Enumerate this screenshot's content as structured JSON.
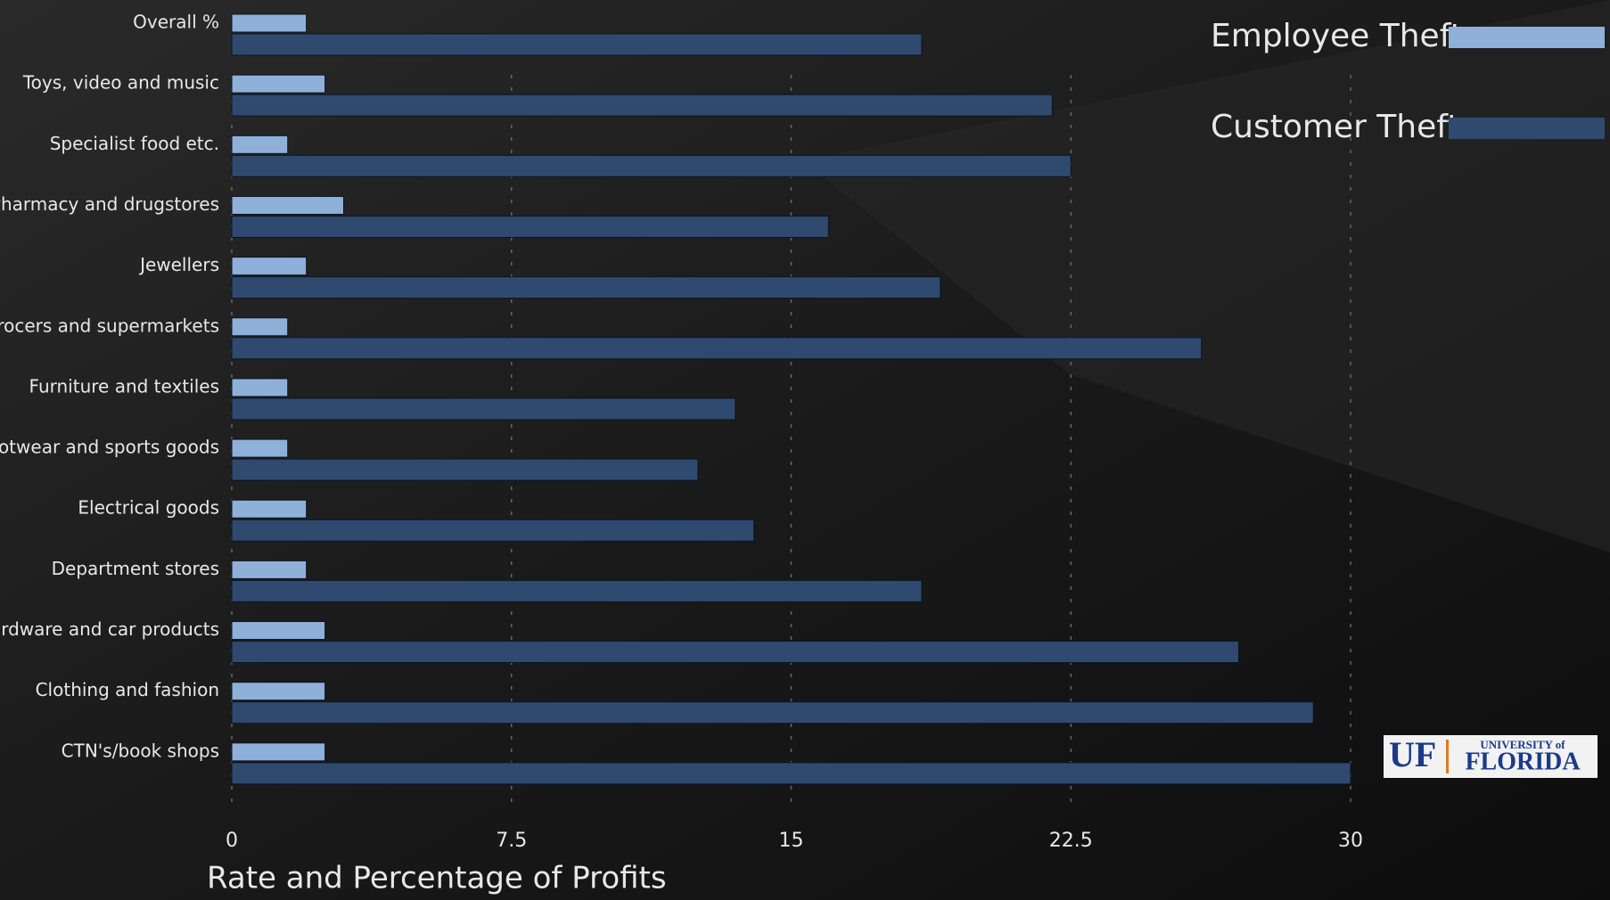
{
  "chart_data": {
    "type": "bar",
    "orientation": "horizontal",
    "x_label": "Rate and Percentage of Profits",
    "categories": [
      "Overall %",
      "Toys, video and music",
      "Specialist food etc.",
      "Pharmacy and drugstores",
      "Jewellers",
      "Grocers and supermarkets",
      "Furniture and textiles",
      "Footwear and sports goods",
      "Electrical goods",
      "Department stores",
      "hardware and car products",
      "Clothing and fashion",
      "CTN's/book shops"
    ],
    "series": [
      {
        "name": "Employee Theft",
        "color": "#8fb0d8",
        "values": [
          2,
          2.5,
          1.5,
          3,
          2,
          1.5,
          1.5,
          1.5,
          2,
          2,
          2.5,
          2.5,
          2.5
        ]
      },
      {
        "name": "Customer Theft",
        "color": "#2f4a6e",
        "values": [
          18.5,
          22,
          22.5,
          16,
          19,
          26,
          13.5,
          12.5,
          14,
          18.5,
          27,
          29,
          30
        ]
      }
    ],
    "xlim": [
      0,
      30
    ],
    "xticks": [
      0,
      7.5,
      15,
      22.5,
      30
    ],
    "grid": true,
    "legend": "top-right",
    "logo": {
      "mark": "UF",
      "line1": "UNIVERSITY of",
      "line2": "FLORIDA"
    }
  }
}
